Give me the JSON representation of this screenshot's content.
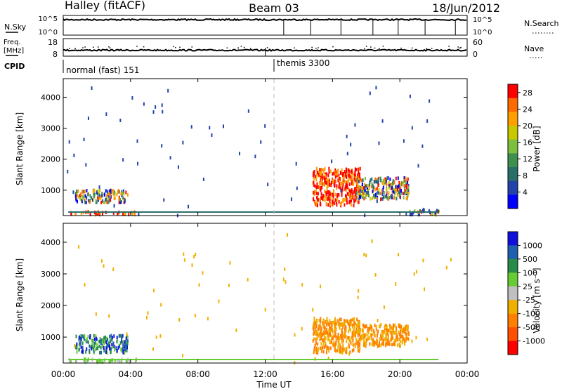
{
  "header": {
    "station": "Halley (fitACF)",
    "beam": "Beam 03",
    "date": "18/Jun/2012"
  },
  "status": {
    "nsky_label": "N.Sky",
    "nsky_ticks": [
      "10^5",
      "10^0"
    ],
    "nsearch_label": "N.Search",
    "nsearch_ticks": [
      "10^5",
      "10^0"
    ],
    "freq_label_line1": "Freq.",
    "freq_label_line2": "[MHz]",
    "freq_ticks": [
      "18",
      "8"
    ],
    "nave_label": "Nave",
    "nave_ticks": [
      "60",
      "0"
    ],
    "cpid_label": "CPID",
    "programs": [
      {
        "name": "normal (fast) 151",
        "start_hour": 0
      },
      {
        "name": "themis 3300",
        "start_hour": 12
      }
    ]
  },
  "colors": {
    "power": [
      "#0000ff",
      "#2244aa",
      "#2a6e6a",
      "#3f8f4f",
      "#7fbf3f",
      "#c8c800",
      "#ffa000",
      "#ff6a00",
      "#ff0000"
    ],
    "velocity": [
      "#1010dd",
      "#2060b0",
      "#2a8a4a",
      "#66cc33",
      "#c0c0c0",
      "#f0b000",
      "#ff8000",
      "#ff5000",
      "#ff0000"
    ],
    "ground_scatter": "#808080"
  },
  "chart_data": [
    {
      "type": "heatmap",
      "name": "power-panel",
      "ylabel": "Slant Range [km]",
      "x_range_hours": [
        0,
        24
      ],
      "ylim_km": [
        180,
        4600
      ],
      "yticks": [
        1000,
        2000,
        3000,
        4000
      ],
      "colorbar_label": "Power [dB]",
      "colorbar_ticks": [
        "4",
        "8",
        "12",
        "16",
        "20",
        "24",
        "28"
      ],
      "colorbar_range": [
        0,
        30
      ],
      "scatter_regions": [
        {
          "t": [
            0.7,
            3.8
          ],
          "r": [
            600,
            1000
          ],
          "level": "mixed"
        },
        {
          "t": [
            0.3,
            4.3
          ],
          "r": [
            200,
            300
          ],
          "level": "high"
        },
        {
          "t": [
            14.8,
            17.6
          ],
          "r": [
            500,
            1700
          ],
          "level": "high"
        },
        {
          "t": [
            17.4,
            20.5
          ],
          "r": [
            700,
            1400
          ],
          "level": "mixed"
        },
        {
          "t": [
            20.5,
            22.3
          ],
          "r": [
            200,
            350
          ],
          "level": "mixed"
        }
      ]
    },
    {
      "type": "heatmap",
      "name": "velocity-panel",
      "ylabel": "Slant Range [km]",
      "xlabel": "Time UT",
      "xticks": [
        "00:00",
        "04:00",
        "08:00",
        "12:00",
        "16:00",
        "20:00",
        "00:00"
      ],
      "x_range_hours": [
        0,
        24
      ],
      "ylim_km": [
        180,
        4600
      ],
      "yticks": [
        1000,
        2000,
        3000,
        4000
      ],
      "colorbar_label": "Velocity [m s⁻¹]",
      "colorbar_ticks": [
        "1000",
        "500",
        "100",
        "25",
        "-25",
        "-100",
        "-500",
        "-1000"
      ],
      "scatter_regions": [
        {
          "t": [
            0.7,
            3.8
          ],
          "r": [
            500,
            1050
          ],
          "sign": "mixed"
        },
        {
          "t": [
            0.3,
            4.3
          ],
          "r": [
            200,
            300
          ],
          "sign": "ground"
        },
        {
          "t": [
            14.8,
            17.6
          ],
          "r": [
            500,
            1600
          ],
          "sign": "negative"
        },
        {
          "t": [
            17.4,
            20.5
          ],
          "r": [
            700,
            1400
          ],
          "sign": "negative"
        }
      ]
    }
  ]
}
